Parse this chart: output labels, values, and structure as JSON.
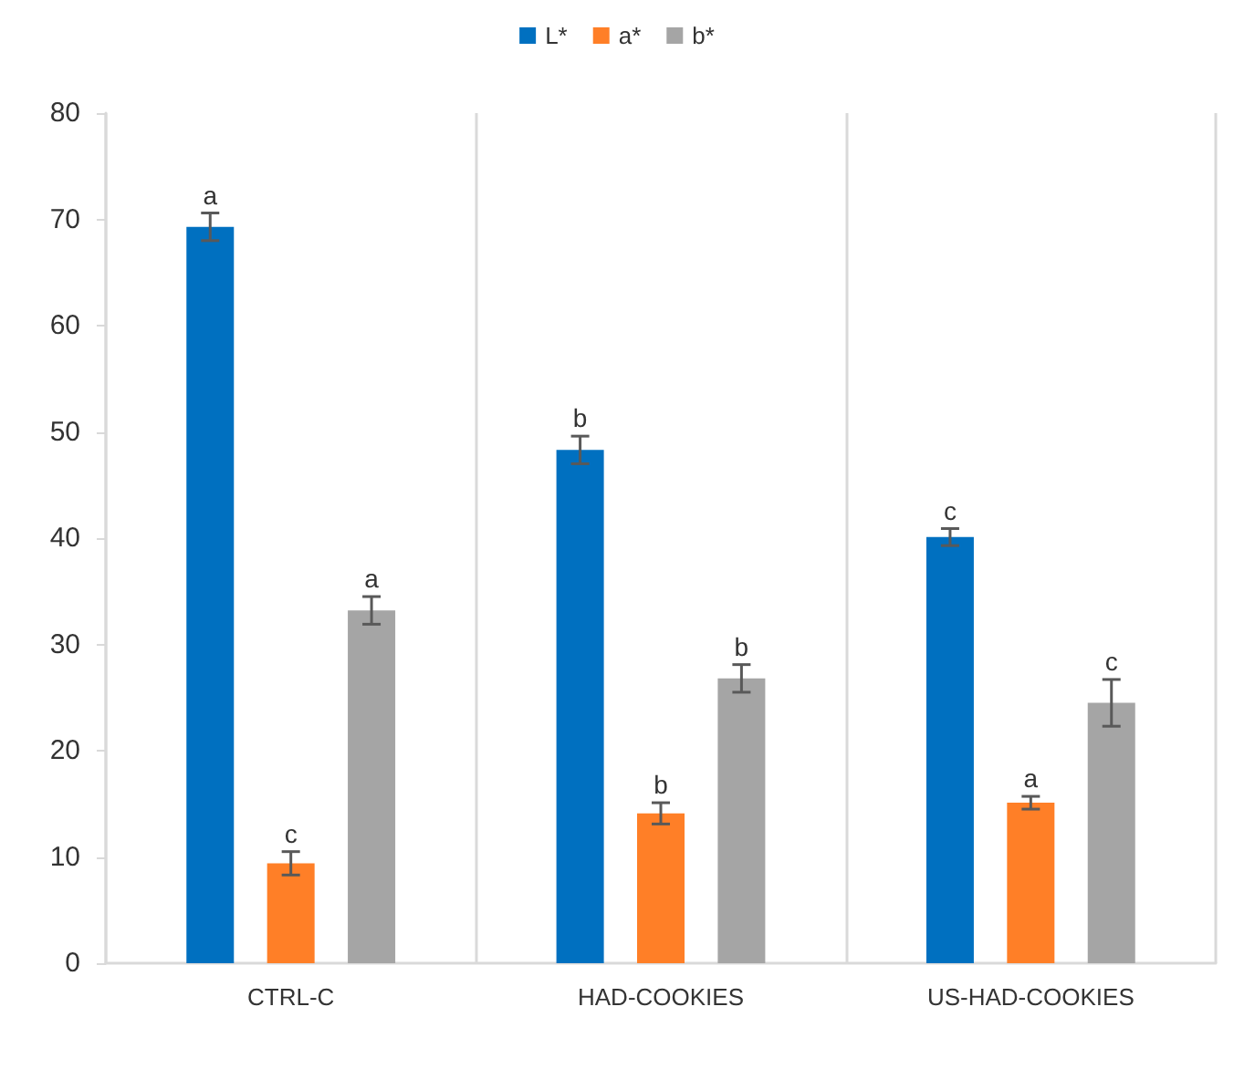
{
  "chart_data": {
    "type": "bar",
    "categories": [
      "CTRL-C",
      "HAD-COOKIES",
      "US-HAD-COOKIES"
    ],
    "series": [
      {
        "name": "L*",
        "color": "#0070c0",
        "values": [
          69.3,
          48.3,
          40.1
        ],
        "errors": [
          1.3,
          1.3,
          0.8
        ],
        "value_labels": [
          "a",
          "b",
          "c"
        ]
      },
      {
        "name": "a*",
        "color": "#ff7f27",
        "values": [
          9.4,
          14.1,
          15.1
        ],
        "errors": [
          1.1,
          1.0,
          0.6
        ],
        "value_labels": [
          "c",
          "b",
          "a"
        ]
      },
      {
        "name": "b*",
        "color": "#a5a5a5",
        "values": [
          33.2,
          26.8,
          24.5
        ],
        "errors": [
          1.3,
          1.3,
          2.2
        ],
        "value_labels": [
          "a",
          "b",
          "c"
        ]
      }
    ],
    "ylim": [
      0,
      80
    ],
    "yticks": [
      0,
      10,
      20,
      30,
      40,
      50,
      60,
      70,
      80
    ],
    "grid": "x",
    "legend": "top"
  }
}
